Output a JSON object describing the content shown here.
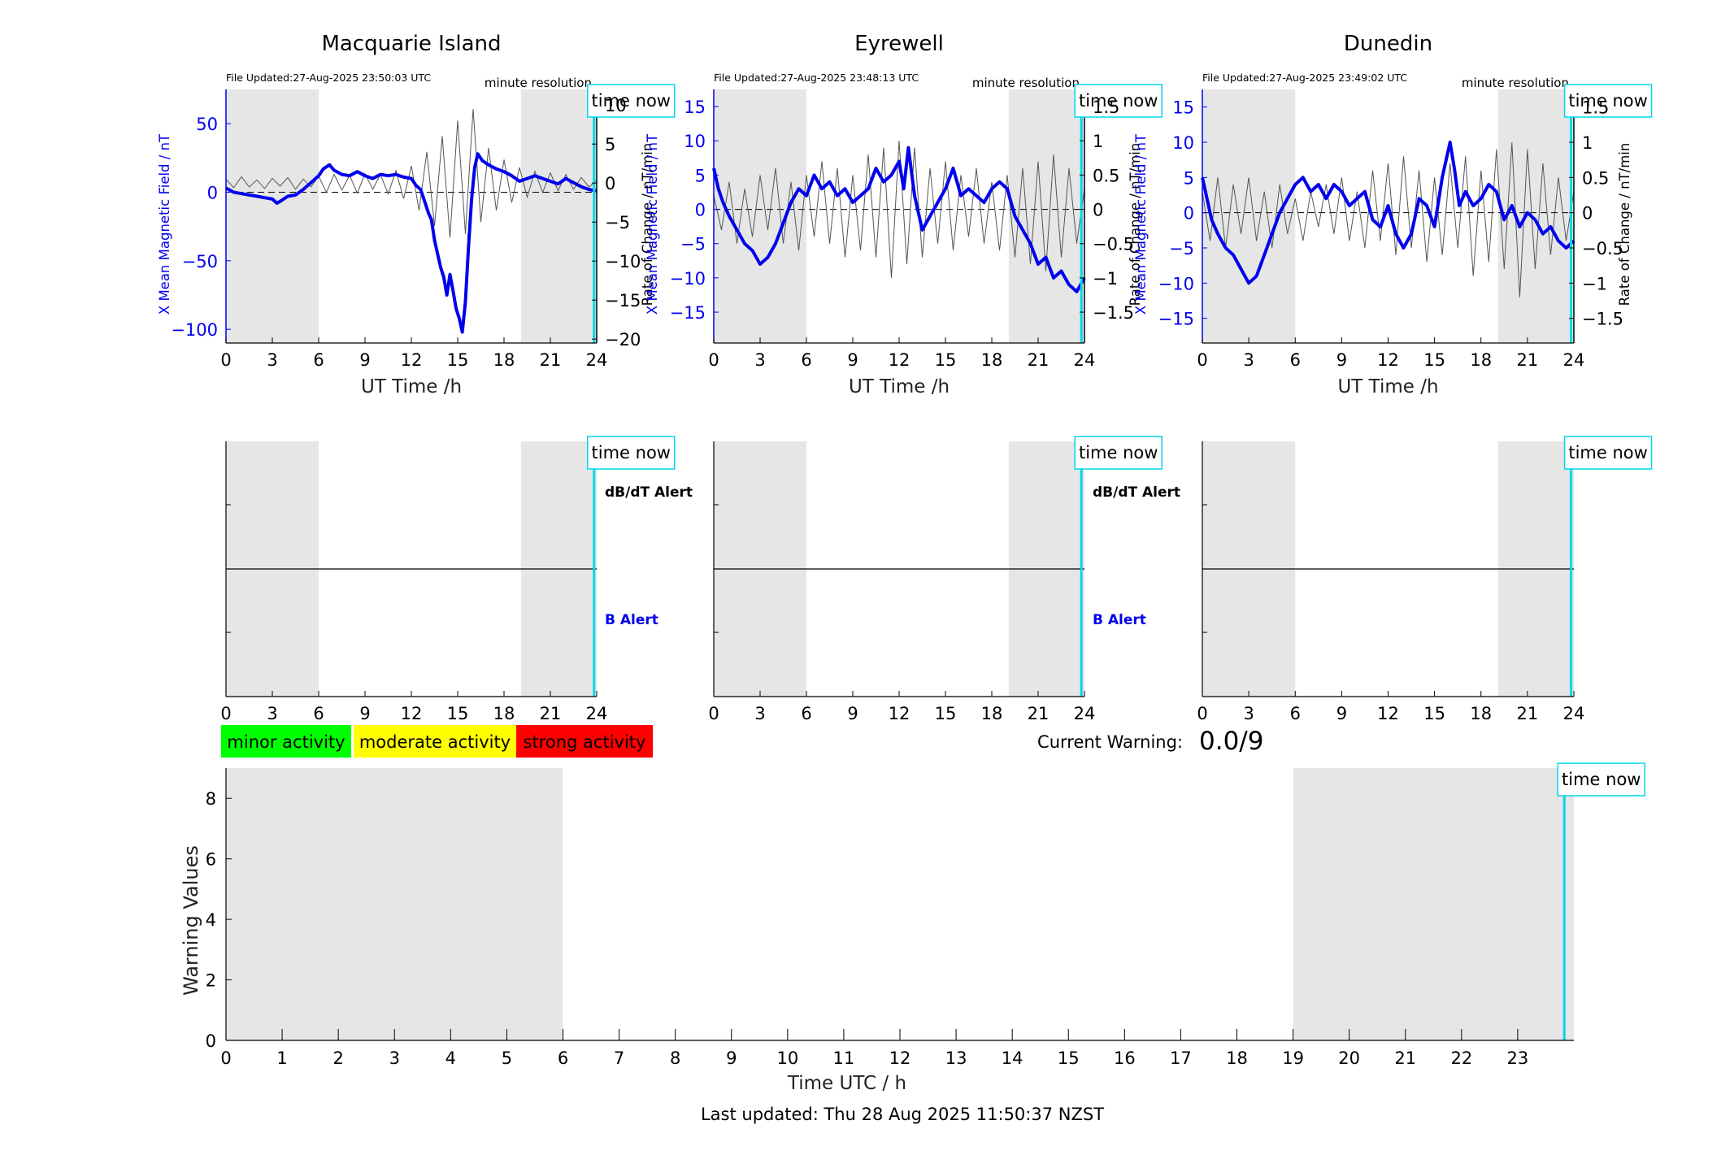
{
  "colors": {
    "field_line": "#0000ee",
    "rate_line": "#555555",
    "night_shade": "#e6e6e6",
    "time_now": "#00d8e8",
    "minor": "#00ff00",
    "moderate": "#ffff00",
    "strong": "#ff0000"
  },
  "common": {
    "time_now_label": "time now",
    "minute_resolution": "minute resolution",
    "x_axis_label": "UT Time /h",
    "dbdt_alert": "dB/dT Alert",
    "b_alert": "B Alert",
    "left_ylabel": "X Mean Magnetic Field / nT",
    "right_ylabel": "Rate of Change / nT/min"
  },
  "legend": {
    "minor": "minor activity",
    "moderate": "moderate activity",
    "strong": "strong activity"
  },
  "warning": {
    "label": "Current Warning:",
    "value": "0.0/9"
  },
  "footer": {
    "last_updated": "Last updated: Thu 28 Aug 2025 11:50:37 NZST"
  },
  "chart_data": [
    {
      "type": "line",
      "title": "Macquarie Island",
      "file_updated": "File Updated:27-Aug-2025 23:50:03 UTC",
      "xlabel": "UT Time /h",
      "ylabel": "X Mean Magnetic Field / nT",
      "ylabel_right": "Rate of Change / nT/min",
      "xlim": [
        0,
        24
      ],
      "xticks": [
        0,
        3,
        6,
        9,
        12,
        15,
        18,
        21,
        24
      ],
      "ylim": [
        -110,
        75
      ],
      "yticks": [
        50,
        0,
        -50,
        -100
      ],
      "ylim_right": [
        -20.5,
        12
      ],
      "yticks_right": [
        10,
        5,
        0,
        -5,
        -10,
        -15,
        -20
      ],
      "shaded_hours": [
        [
          0,
          6
        ],
        [
          19.1,
          24
        ]
      ],
      "time_now_hour": 23.83,
      "series": [
        {
          "axis": "left",
          "x": [
            0,
            0.5,
            1,
            1.5,
            2,
            2.5,
            3,
            3.3,
            3.6,
            4,
            4.5,
            5,
            5.5,
            6,
            6.3,
            6.7,
            7,
            7.5,
            8,
            8.5,
            9,
            9.5,
            10,
            10.5,
            11,
            11.5,
            12,
            12.3,
            12.6,
            12.9,
            13.1,
            13.3,
            13.5,
            13.7,
            13.9,
            14.1,
            14.3,
            14.5,
            14.7,
            14.9,
            15.1,
            15.3,
            15.5,
            15.7,
            15.9,
            16.1,
            16.3,
            16.6,
            17,
            17.5,
            18,
            18.5,
            19,
            19.5,
            20,
            20.5,
            21,
            21.5,
            22,
            22.5,
            23,
            23.5,
            24
          ],
          "values": [
            3,
            0,
            -1,
            -2,
            -3,
            -4,
            -5,
            -8,
            -6,
            -3,
            -2,
            2,
            7,
            12,
            17,
            20,
            16,
            13,
            12,
            15,
            12,
            10,
            13,
            12,
            13,
            11,
            10,
            5,
            2,
            -8,
            -15,
            -20,
            -35,
            -45,
            -55,
            -62,
            -75,
            -60,
            -72,
            -85,
            -92,
            -102,
            -80,
            -40,
            -5,
            18,
            28,
            23,
            20,
            17,
            15,
            12,
            8,
            10,
            12,
            10,
            8,
            6,
            10,
            7,
            4,
            2,
            1
          ]
        },
        {
          "axis": "right",
          "x": [
            0,
            0.5,
            1,
            1.5,
            2,
            2.5,
            3,
            3.5,
            4,
            4.5,
            5,
            5.5,
            6,
            6.5,
            7,
            7.5,
            8,
            8.5,
            9,
            9.5,
            10,
            10.5,
            11,
            11.5,
            12,
            12.5,
            13,
            13.5,
            14,
            14.5,
            15,
            15.5,
            16,
            16.5,
            17,
            17.5,
            18,
            18.5,
            19,
            19.5,
            20,
            20.5,
            21,
            21.5,
            22,
            22.5,
            23,
            23.5,
            24
          ],
          "values": [
            0.5,
            -0.6,
            0.8,
            -0.5,
            0.4,
            -0.7,
            0.6,
            -0.4,
            0.7,
            -0.8,
            0.5,
            -0.5,
            0.9,
            -1.2,
            1.1,
            -0.9,
            1.0,
            -1.3,
            1.2,
            -0.8,
            1.1,
            -1.4,
            1.6,
            -2.0,
            2.2,
            -3.5,
            4.0,
            -5.5,
            6.0,
            -7.0,
            8.0,
            -6.5,
            9.5,
            -5.0,
            4.5,
            -3.5,
            3.0,
            -2.5,
            2.0,
            -1.8,
            1.5,
            -1.2,
            1.3,
            -1.0,
            1.1,
            -0.8,
            0.7,
            -0.5,
            0.3
          ]
        }
      ]
    },
    {
      "type": "line",
      "title": "Eyrewell",
      "file_updated": "File Updated:27-Aug-2025 23:48:13 UTC",
      "xlabel": "UT Time /h",
      "ylabel": "X Mean Magnetic Field / nT",
      "ylabel_right": "Rate of Change / nT/min",
      "xlim": [
        0,
        24
      ],
      "xticks": [
        0,
        3,
        6,
        9,
        12,
        15,
        18,
        21,
        24
      ],
      "ylim": [
        -19.5,
        17.5
      ],
      "yticks": [
        15,
        10,
        5,
        0,
        -5,
        -10,
        -15
      ],
      "ylim_right": [
        -1.95,
        1.75
      ],
      "yticks_right": [
        1.5,
        1,
        0.5,
        0,
        -0.5,
        -1,
        -1.5
      ],
      "shaded_hours": [
        [
          0,
          6
        ],
        [
          19.1,
          24
        ]
      ],
      "time_now_hour": 23.8,
      "series": [
        {
          "axis": "left",
          "x": [
            0,
            0.3,
            0.6,
            1,
            1.5,
            2,
            2.5,
            3,
            3.5,
            4,
            4.5,
            5,
            5.5,
            6,
            6.5,
            7,
            7.5,
            8,
            8.5,
            9,
            9.5,
            10,
            10.5,
            11,
            11.5,
            12,
            12.3,
            12.6,
            13,
            13.5,
            14,
            14.5,
            15,
            15.5,
            16,
            16.5,
            17,
            17.5,
            18,
            18.5,
            19,
            19.5,
            20,
            20.5,
            21,
            21.5,
            22,
            22.5,
            23,
            23.5,
            24
          ],
          "values": [
            6,
            3,
            1,
            -1,
            -3,
            -5,
            -6,
            -8,
            -7,
            -5,
            -2,
            1,
            3,
            2,
            5,
            3,
            4,
            2,
            3,
            1,
            2,
            3,
            6,
            4,
            5,
            7,
            3,
            9,
            2,
            -3,
            -1,
            1,
            3,
            6,
            2,
            3,
            2,
            1,
            3,
            4,
            3,
            -1,
            -3,
            -5,
            -8,
            -7,
            -10,
            -9,
            -11,
            -12,
            -10
          ]
        },
        {
          "axis": "right",
          "x": [
            0,
            0.5,
            1,
            1.5,
            2,
            2.5,
            3,
            3.5,
            4,
            4.5,
            5,
            5.5,
            6,
            6.5,
            7,
            7.5,
            8,
            8.5,
            9,
            9.5,
            10,
            10.5,
            11,
            11.5,
            12,
            12.5,
            13,
            13.5,
            14,
            14.5,
            15,
            15.5,
            16,
            16.5,
            17,
            17.5,
            18,
            18.5,
            19,
            19.5,
            20,
            20.5,
            21,
            21.5,
            22,
            22.5,
            23,
            23.5,
            24
          ],
          "values": [
            0.2,
            -0.3,
            0.4,
            -0.5,
            0.3,
            -0.4,
            0.5,
            -0.3,
            0.6,
            -0.5,
            0.4,
            -0.6,
            0.5,
            -0.4,
            0.7,
            -0.5,
            0.6,
            -0.7,
            0.5,
            -0.6,
            0.8,
            -0.7,
            0.9,
            -1.0,
            1.0,
            -0.8,
            0.9,
            -0.7,
            0.6,
            -0.5,
            0.7,
            -0.6,
            0.5,
            -0.4,
            0.6,
            -0.5,
            0.4,
            -0.6,
            0.5,
            -0.7,
            0.6,
            -0.8,
            0.7,
            -0.9,
            0.8,
            -0.7,
            0.6,
            -0.5,
            0.3
          ]
        }
      ]
    },
    {
      "type": "line",
      "title": "Dunedin",
      "file_updated": "File Updated:27-Aug-2025 23:49:02 UTC",
      "xlabel": "UT Time /h",
      "ylabel": "X Mean Magnetic Field / nT",
      "ylabel_right": "Rate of Change / nT/min",
      "xlim": [
        0,
        24
      ],
      "xticks": [
        0,
        3,
        6,
        9,
        12,
        15,
        18,
        21,
        24
      ],
      "ylim": [
        -18.5,
        17.5
      ],
      "yticks": [
        15,
        10,
        5,
        0,
        -5,
        -10,
        -15
      ],
      "ylim_right": [
        -1.85,
        1.75
      ],
      "yticks_right": [
        1.5,
        1,
        0.5,
        0,
        -0.5,
        -1,
        -1.5
      ],
      "shaded_hours": [
        [
          0,
          6
        ],
        [
          19.1,
          24
        ]
      ],
      "time_now_hour": 23.82,
      "series": [
        {
          "axis": "left",
          "x": [
            0,
            0.3,
            0.6,
            1,
            1.5,
            2,
            2.5,
            3,
            3.5,
            4,
            4.5,
            5,
            5.5,
            6,
            6.5,
            7,
            7.5,
            8,
            8.5,
            9,
            9.5,
            10,
            10.5,
            11,
            11.5,
            12,
            12.5,
            13,
            13.5,
            14,
            14.5,
            15,
            15.5,
            16,
            16.3,
            16.6,
            17,
            17.5,
            18,
            18.5,
            19,
            19.5,
            20,
            20.5,
            21,
            21.5,
            22,
            22.5,
            23,
            23.5,
            24
          ],
          "values": [
            5,
            2,
            -1,
            -3,
            -5,
            -6,
            -8,
            -10,
            -9,
            -6,
            -3,
            0,
            2,
            4,
            5,
            3,
            4,
            2,
            4,
            3,
            1,
            2,
            3,
            -1,
            -2,
            1,
            -3,
            -5,
            -3,
            2,
            1,
            -2,
            5,
            10,
            6,
            1,
            3,
            1,
            2,
            4,
            3,
            -1,
            1,
            -2,
            0,
            -1,
            -3,
            -2,
            -4,
            -5,
            -4
          ]
        },
        {
          "axis": "right",
          "x": [
            0,
            0.5,
            1,
            1.5,
            2,
            2.5,
            3,
            3.5,
            4,
            4.5,
            5,
            5.5,
            6,
            6.5,
            7,
            7.5,
            8,
            8.5,
            9,
            9.5,
            10,
            10.5,
            11,
            11.5,
            12,
            12.5,
            13,
            13.5,
            14,
            14.5,
            15,
            15.5,
            16,
            16.5,
            17,
            17.5,
            18,
            18.5,
            19,
            19.5,
            20,
            20.5,
            21,
            21.5,
            22,
            22.5,
            23,
            23.5,
            24
          ],
          "values": [
            0.3,
            -0.4,
            0.5,
            -0.5,
            0.4,
            -0.3,
            0.5,
            -0.4,
            0.3,
            -0.5,
            0.4,
            -0.3,
            0.2,
            -0.4,
            0.3,
            -0.2,
            0.4,
            -0.3,
            0.5,
            -0.4,
            0.3,
            -0.5,
            0.6,
            -0.4,
            0.7,
            -0.6,
            0.8,
            -0.5,
            0.6,
            -0.7,
            0.5,
            -0.6,
            0.7,
            -0.5,
            0.8,
            -0.9,
            0.6,
            -0.7,
            0.9,
            -0.8,
            1.0,
            -1.2,
            0.9,
            -0.8,
            0.7,
            -0.6,
            0.5,
            -0.4,
            0.3
          ]
        }
      ]
    },
    {
      "type": "line",
      "title": "",
      "xlabel": "UT Time /h",
      "ylabel": "",
      "xlim": [
        0,
        24
      ],
      "xticks": [
        0,
        3,
        6,
        9,
        12,
        15,
        18,
        21,
        24
      ],
      "shaded_hours": [
        [
          0,
          6
        ],
        [
          19.1,
          24
        ]
      ],
      "time_now_hour": 23.83,
      "alert_labels": [
        "dB/dT Alert",
        "B Alert"
      ],
      "series": []
    },
    {
      "type": "line",
      "title": "",
      "xlabel": "UT Time /h",
      "ylabel": "",
      "xlim": [
        0,
        24
      ],
      "xticks": [
        0,
        3,
        6,
        9,
        12,
        15,
        18,
        21,
        24
      ],
      "shaded_hours": [
        [
          0,
          6
        ],
        [
          19.1,
          24
        ]
      ],
      "time_now_hour": 23.8,
      "alert_labels": [
        "dB/dT Alert",
        "B Alert"
      ],
      "series": []
    },
    {
      "type": "line",
      "title": "",
      "xlabel": "UT Time /h",
      "ylabel": "",
      "xlim": [
        0,
        24
      ],
      "xticks": [
        0,
        3,
        6,
        9,
        12,
        15,
        18,
        21,
        24
      ],
      "shaded_hours": [
        [
          0,
          6
        ],
        [
          19.1,
          24
        ]
      ],
      "time_now_hour": 23.82,
      "alert_labels": [],
      "series": []
    },
    {
      "type": "line",
      "title": "",
      "xlabel": "Time UTC / h",
      "ylabel": "Warning Values",
      "xlim": [
        0,
        24
      ],
      "xticks": [
        0,
        1,
        2,
        3,
        4,
        5,
        6,
        7,
        8,
        9,
        10,
        11,
        12,
        13,
        14,
        15,
        16,
        17,
        18,
        19,
        20,
        21,
        22,
        23
      ],
      "ylim": [
        0,
        9
      ],
      "yticks": [
        0,
        2,
        4,
        6,
        8
      ],
      "shaded_hours": [
        [
          0,
          6
        ],
        [
          19,
          24
        ]
      ],
      "time_now_hour": 23.83,
      "series": []
    }
  ]
}
